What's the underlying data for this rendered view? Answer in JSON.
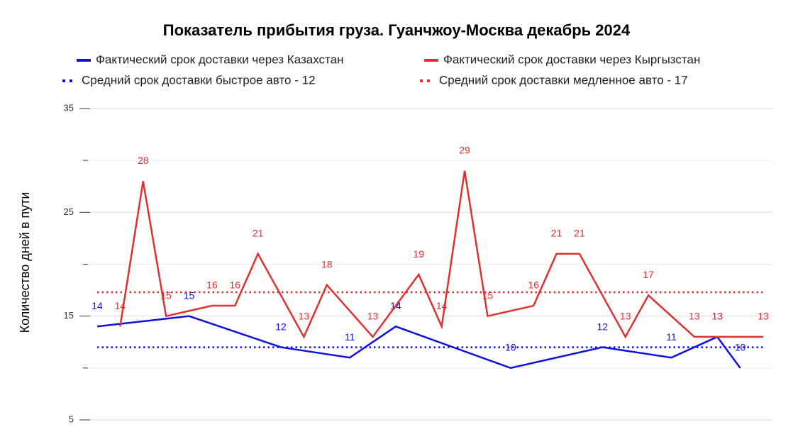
{
  "chart_data": {
    "type": "line",
    "title": "Показатель прибытия груза. Гуанчжоу-Москва декабрь 2024",
    "y_label": "Количество дней в пути",
    "xlim": [
      1,
      30
    ],
    "ylim": [
      5,
      35
    ],
    "yticks": [
      5,
      15,
      25,
      35
    ],
    "minor_yticks": [
      10,
      20,
      30
    ],
    "grid": true,
    "series": [
      {
        "name": "Фактический срок доставки через Казахстан",
        "color": "#1010e0",
        "style": "solid",
        "x": [
          1,
          5,
          9,
          12,
          14,
          19,
          23,
          26,
          28,
          29
        ],
        "values": [
          14,
          15,
          12,
          11,
          14,
          10,
          12,
          11,
          13,
          10
        ]
      },
      {
        "name": "Фактический срок доставки через Кыргызстан",
        "color": "#e03030",
        "style": "solid",
        "x": [
          2,
          3,
          4,
          6,
          7,
          8,
          10,
          11,
          13,
          15,
          16,
          17,
          18,
          20,
          21,
          22,
          24,
          25,
          27,
          28,
          30
        ],
        "values": [
          14,
          28,
          15,
          16,
          16,
          21,
          13,
          18,
          13,
          19,
          14,
          29,
          15,
          16,
          21,
          21,
          13,
          17,
          13,
          13,
          13
        ]
      },
      {
        "name": "Средний срок доставки быстрое авто - 12",
        "color": "#1010e0",
        "style": "dotted",
        "level": 12
      },
      {
        "name": "Средний срок доставки медленное авто - 17",
        "color": "#e03030",
        "style": "dotted",
        "level": 17.3
      }
    ]
  }
}
